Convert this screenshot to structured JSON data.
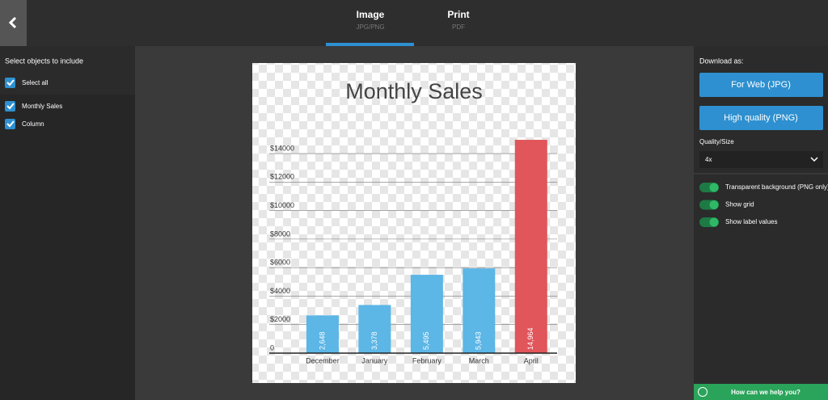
{
  "nav": {
    "tabs": [
      {
        "label": "Image",
        "sublabel": "JPG/PNG"
      },
      {
        "label": "Print",
        "sublabel": "PDF"
      }
    ]
  },
  "left_panel": {
    "title": "Select objects to include",
    "items": [
      "Select all",
      "Monthly Sales",
      "Column"
    ]
  },
  "chart_data": {
    "type": "bar",
    "title": "Monthly Sales",
    "categories": [
      "December",
      "January",
      "February",
      "March",
      "April"
    ],
    "values": [
      2648,
      3378,
      5495,
      5943,
      14964
    ],
    "value_labels": [
      "2,648",
      "3,378",
      "5,495",
      "5,943",
      "14,964"
    ],
    "colors": [
      "#5cb6e6",
      "#5cb6e6",
      "#5cb6e6",
      "#5cb6e6",
      "#e0565b"
    ],
    "ylim": [
      0,
      15000
    ],
    "yticks": [
      0,
      {
        "value": 2000,
        "label": "$2000"
      },
      {
        "value": 4000,
        "label": "$4000"
      },
      {
        "value": 6000,
        "label": "$6000"
      },
      {
        "value": 8000,
        "label": "$8000"
      },
      {
        "value": 10000,
        "label": "$10000"
      },
      {
        "value": 12000,
        "label": "$12000"
      },
      {
        "value": 14000,
        "label": "$14000"
      }
    ],
    "grid": true
  },
  "right_panel": {
    "title": "Download as:",
    "buttons": [
      "For Web (JPG)",
      "High quality (PNG)"
    ],
    "quality_label": "Quality/Size",
    "quality_value": "4x",
    "toggles": [
      "Transparent background (PNG only)",
      "Show grid",
      "Show label values"
    ]
  },
  "help": "How can we help you?"
}
